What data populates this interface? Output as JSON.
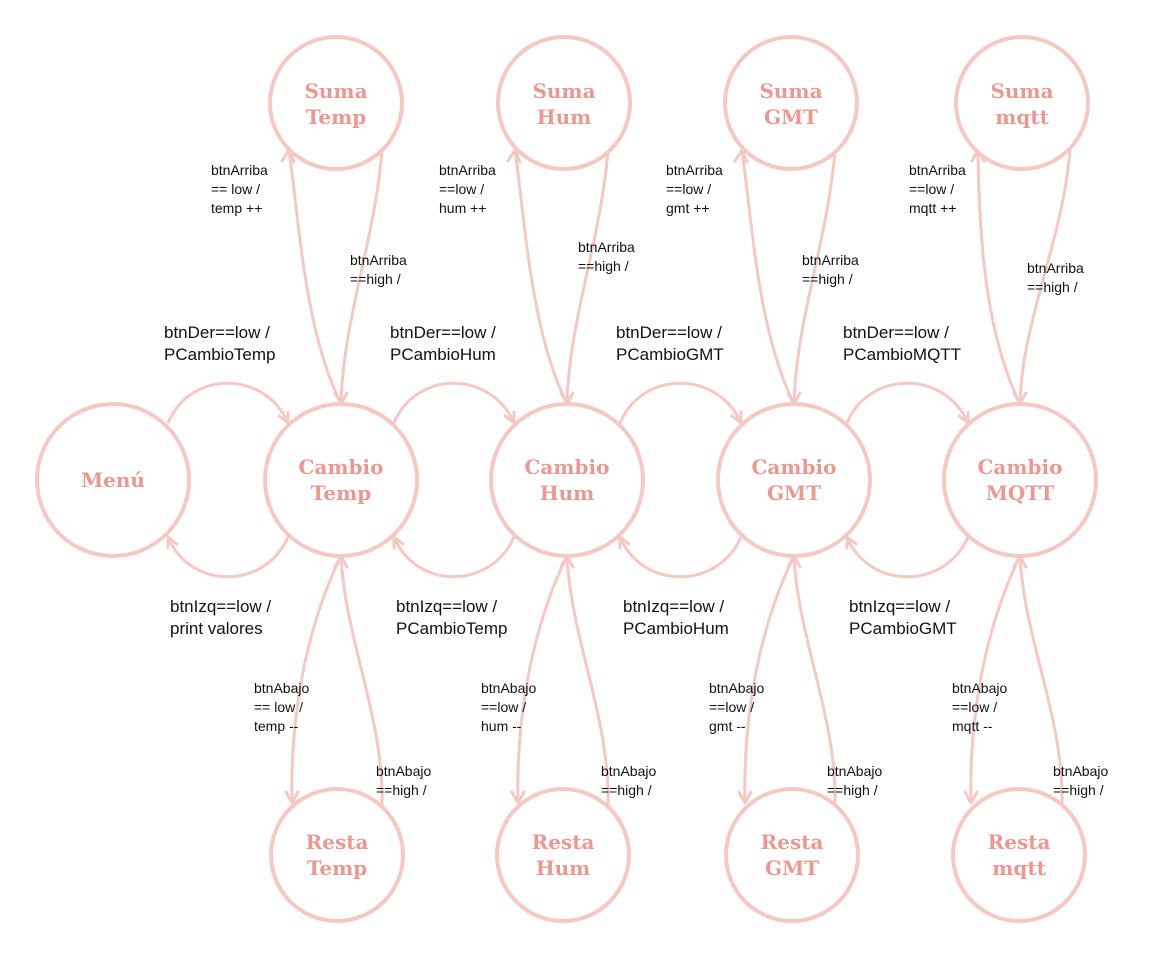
{
  "states": {
    "menu": "Menú",
    "cambio_temp": [
      "Cambio",
      "Temp"
    ],
    "cambio_hum": [
      "Cambio",
      "Hum"
    ],
    "cambio_gmt": [
      "Cambio",
      "GMT"
    ],
    "cambio_mqtt": [
      "Cambio",
      "MQTT"
    ],
    "suma_temp": [
      "Suma",
      "Temp"
    ],
    "suma_hum": [
      "Suma",
      "Hum"
    ],
    "suma_gmt": [
      "Suma",
      "GMT"
    ],
    "suma_mqtt": [
      "Suma",
      "mqtt"
    ],
    "resta_temp": [
      "Resta",
      "Temp"
    ],
    "resta_hum": [
      "Resta",
      "Hum"
    ],
    "resta_gmt": [
      "Resta",
      "GMT"
    ],
    "resta_mqtt": [
      "Resta",
      "mqtt"
    ]
  },
  "transitions": {
    "der_temp": [
      "btnDer==low /",
      "PCambioTemp"
    ],
    "der_hum": [
      "btnDer==low /",
      "PCambioHum"
    ],
    "der_gmt": [
      "btnDer==low /",
      "PCambioGMT"
    ],
    "der_mqtt": [
      "btnDer==low /",
      "PCambioMQTT"
    ],
    "izq_menu": [
      "btnIzq==low /",
      "print valores"
    ],
    "izq_temp": [
      "btnIzq==low /",
      "PCambioTemp"
    ],
    "izq_hum": [
      "btnIzq==low /",
      "PCambioHum"
    ],
    "izq_gmt": [
      "btnIzq==low /",
      "PCambioGMT"
    ],
    "arriba_low_temp": [
      "btnArriba",
      "== low /",
      "temp ++"
    ],
    "arriba_low_hum": [
      "btnArriba",
      "==low /",
      "hum ++"
    ],
    "arriba_low_gmt": [
      "btnArriba",
      "==low /",
      "gmt ++"
    ],
    "arriba_low_mqtt": [
      "btnArriba",
      "==low /",
      "mqtt ++"
    ],
    "arriba_high_temp": [
      "btnArriba",
      "==high /"
    ],
    "arriba_high_hum": [
      "btnArriba",
      "==high /"
    ],
    "arriba_high_gmt": [
      "btnArriba",
      "==high /"
    ],
    "arriba_high_mqtt": [
      "btnArriba",
      "==high /"
    ],
    "abajo_low_temp": [
      "btnAbajo",
      "== low /",
      "temp --"
    ],
    "abajo_low_hum": [
      "btnAbajo",
      "==low /",
      "hum --"
    ],
    "abajo_low_gmt": [
      "btnAbajo",
      "==low /",
      "gmt --"
    ],
    "abajo_low_mqtt": [
      "btnAbajo",
      "==low /",
      "mqtt --"
    ],
    "abajo_high_temp": [
      "btnAbajo",
      "==high /"
    ],
    "abajo_high_hum": [
      "btnAbajo",
      "==high /"
    ],
    "abajo_high_gmt": [
      "btnAbajo",
      "==high /"
    ],
    "abajo_high_mqtt": [
      "btnAbajo",
      "==high /"
    ]
  }
}
